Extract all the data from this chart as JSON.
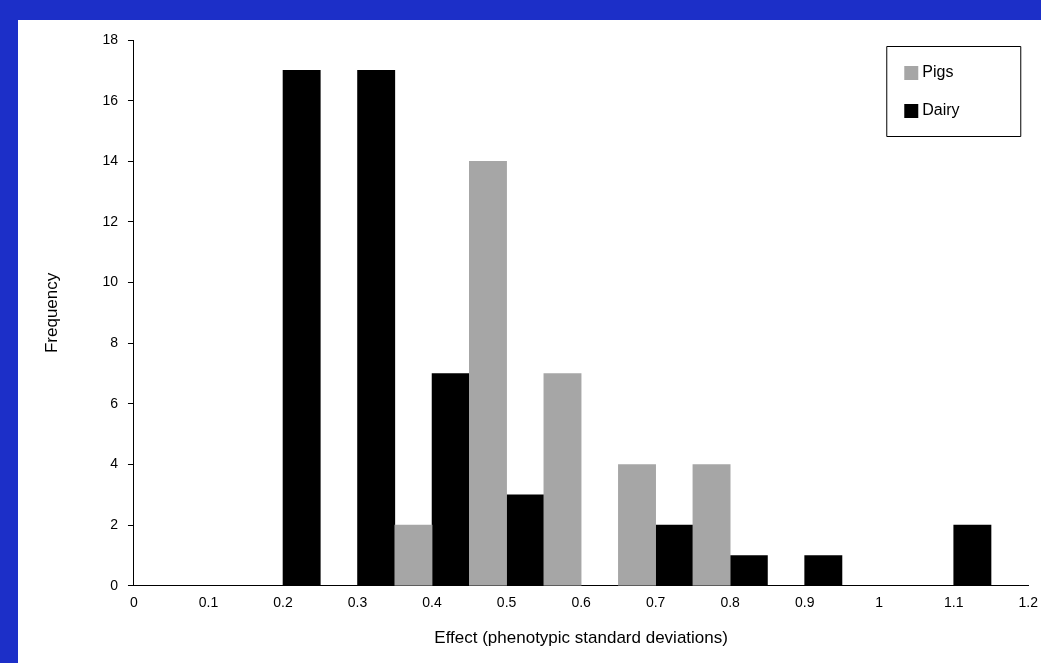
{
  "chart_data": {
    "type": "bar",
    "xlabel": "Effect (phenotypic standard deviations)",
    "ylabel": "Frequency",
    "series": [
      {
        "name": "Pigs",
        "color": "#a6a6a6",
        "x": [
          0.375,
          0.475,
          0.575,
          0.675,
          0.775
        ],
        "values": [
          2,
          14,
          7,
          4,
          4
        ]
      },
      {
        "name": "Dairy",
        "color": "#000000",
        "x": [
          0.225,
          0.325,
          0.425,
          0.525,
          0.725,
          0.825,
          0.925,
          1.125
        ],
        "values": [
          17,
          17,
          7,
          3,
          2,
          1,
          1,
          2
        ]
      }
    ],
    "xlim": [
      0,
      1.2
    ],
    "xticks": [
      0,
      0.1,
      0.2,
      0.3,
      0.4,
      0.5,
      0.6,
      0.7,
      0.8,
      0.9,
      1,
      1.1,
      1.2
    ],
    "ylim": [
      0,
      18
    ],
    "yticks": [
      0,
      2,
      4,
      6,
      8,
      10,
      12,
      14,
      16,
      18
    ],
    "grid": false,
    "legend": "top right"
  }
}
